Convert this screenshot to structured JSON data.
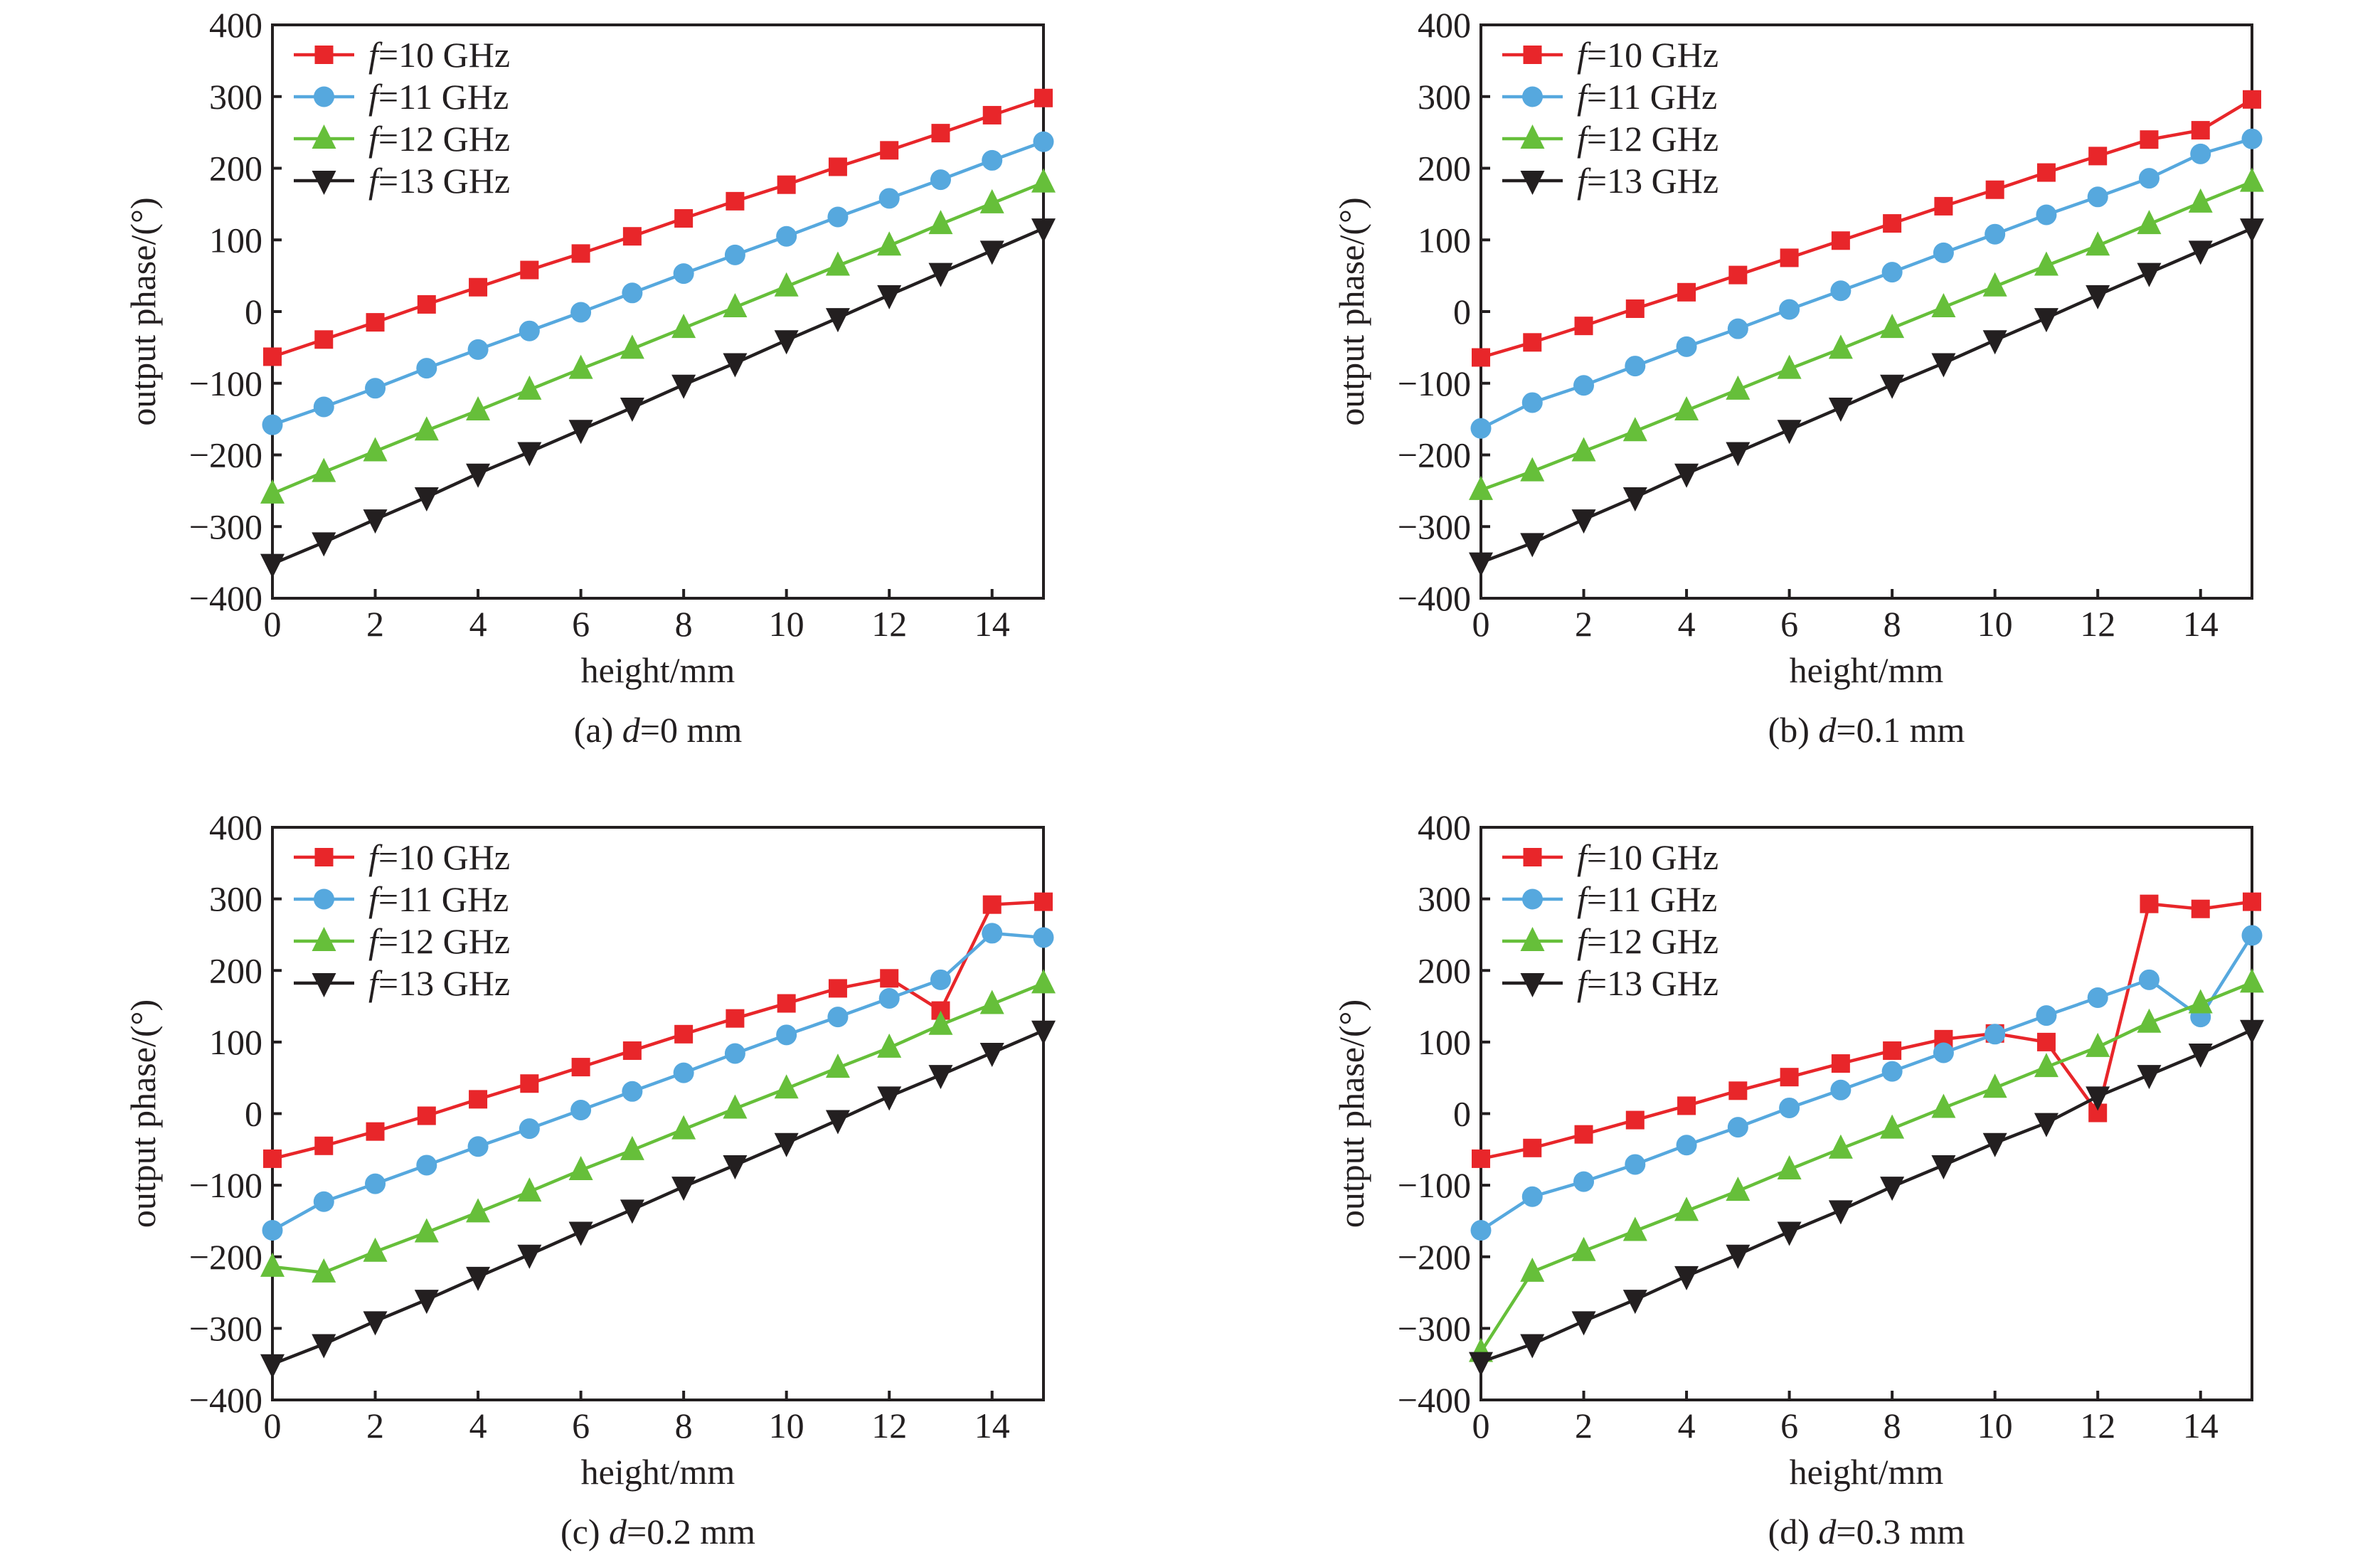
{
  "chart_data": [
    {
      "type": "line",
      "panel": "a",
      "caption_prefix": "(a) ",
      "caption_var": "d",
      "caption_suffix": "=0 mm",
      "xlabel": "height/mm",
      "ylabel": "output phase/(°)",
      "xlim": [
        0,
        15
      ],
      "ylim": [
        -400,
        400
      ],
      "xticks": [
        0,
        2,
        4,
        6,
        8,
        10,
        12,
        14
      ],
      "yticks": [
        -400,
        -300,
        -200,
        -100,
        0,
        100,
        200,
        300,
        400
      ],
      "grid": false,
      "legend_position": "top-left",
      "x": [
        0,
        1,
        2,
        3,
        4,
        5,
        6,
        7,
        8,
        9,
        10,
        11,
        12,
        13,
        14,
        15
      ],
      "series": [
        {
          "name": "f=10 GHz",
          "var": "f",
          "label": "=10 GHz",
          "color": "#e8262a",
          "marker": "square",
          "values": [
            -63,
            -39,
            -15,
            10,
            34,
            58,
            81,
            105,
            130,
            154,
            177,
            202,
            225,
            249,
            274,
            298
          ]
        },
        {
          "name": "f=11 GHz",
          "var": "f",
          "label": "=11 GHz",
          "color": "#56a8de",
          "marker": "circle",
          "values": [
            -158,
            -133,
            -107,
            -79,
            -53,
            -27,
            -1,
            26,
            53,
            79,
            105,
            132,
            158,
            184,
            211,
            237
          ]
        },
        {
          "name": "f=12 GHz",
          "var": "f",
          "label": "=12 GHz",
          "color": "#66bf3a",
          "marker": "triangle-up",
          "values": [
            -254,
            -224,
            -195,
            -166,
            -138,
            -109,
            -80,
            -52,
            -23,
            6,
            35,
            64,
            92,
            122,
            151,
            180
          ]
        },
        {
          "name": "f=13 GHz",
          "var": "f",
          "label": "=13 GHz",
          "color": "#231f20",
          "marker": "triangle-down",
          "values": [
            -352,
            -322,
            -290,
            -259,
            -226,
            -196,
            -165,
            -134,
            -102,
            -72,
            -40,
            -9,
            23,
            54,
            85,
            116
          ]
        }
      ]
    },
    {
      "type": "line",
      "panel": "b",
      "caption_prefix": "(b) ",
      "caption_var": "d",
      "caption_suffix": "=0.1 mm",
      "xlabel": "height/mm",
      "ylabel": "output phase/(°)",
      "xlim": [
        0,
        15
      ],
      "ylim": [
        -400,
        400
      ],
      "xticks": [
        0,
        2,
        4,
        6,
        8,
        10,
        12,
        14
      ],
      "yticks": [
        -400,
        -300,
        -200,
        -100,
        0,
        100,
        200,
        300,
        400
      ],
      "grid": false,
      "legend_position": "top-left",
      "x": [
        0,
        1,
        2,
        3,
        4,
        5,
        6,
        7,
        8,
        9,
        10,
        11,
        12,
        13,
        14,
        15
      ],
      "series": [
        {
          "name": "f=10 GHz",
          "var": "f",
          "label": "=10 GHz",
          "color": "#e8262a",
          "marker": "square",
          "values": [
            -64,
            -43,
            -20,
            4,
            27,
            51,
            75,
            99,
            123,
            147,
            170,
            194,
            217,
            240,
            253,
            296
          ]
        },
        {
          "name": "f=11 GHz",
          "var": "f",
          "label": "=11 GHz",
          "color": "#56a8de",
          "marker": "circle",
          "values": [
            -163,
            -127,
            -103,
            -76,
            -49,
            -24,
            3,
            29,
            55,
            82,
            108,
            135,
            160,
            186,
            220,
            241
          ]
        },
        {
          "name": "f=12 GHz",
          "var": "f",
          "label": "=12 GHz",
          "color": "#66bf3a",
          "marker": "triangle-up",
          "values": [
            -249,
            -223,
            -195,
            -167,
            -138,
            -109,
            -80,
            -52,
            -23,
            6,
            35,
            64,
            92,
            122,
            152,
            181
          ]
        },
        {
          "name": "f=13 GHz",
          "var": "f",
          "label": "=13 GHz",
          "color": "#231f20",
          "marker": "triangle-down",
          "values": [
            -350,
            -323,
            -290,
            -259,
            -226,
            -196,
            -165,
            -134,
            -102,
            -72,
            -40,
            -9,
            23,
            54,
            85,
            116
          ]
        }
      ]
    },
    {
      "type": "line",
      "panel": "c",
      "caption_prefix": "(c) ",
      "caption_var": "d",
      "caption_suffix": "=0.2 mm",
      "xlabel": "height/mm",
      "ylabel": "output phase/(°)",
      "xlim": [
        0,
        15
      ],
      "ylim": [
        -400,
        400
      ],
      "xticks": [
        0,
        2,
        4,
        6,
        8,
        10,
        12,
        14
      ],
      "yticks": [
        -400,
        -300,
        -200,
        -100,
        0,
        100,
        200,
        300,
        400
      ],
      "grid": false,
      "legend_position": "top-left",
      "x": [
        0,
        1,
        2,
        3,
        4,
        5,
        6,
        7,
        8,
        9,
        10,
        11,
        12,
        13,
        14,
        15
      ],
      "series": [
        {
          "name": "f=10 GHz",
          "var": "f",
          "label": "=10 GHz",
          "color": "#e8262a",
          "marker": "square",
          "values": [
            -63,
            -45,
            -25,
            -3,
            20,
            42,
            65,
            88,
            111,
            133,
            154,
            175,
            189,
            144,
            292,
            296
          ]
        },
        {
          "name": "f=11 GHz",
          "var": "f",
          "label": "=11 GHz",
          "color": "#56a8de",
          "marker": "circle",
          "values": [
            -163,
            -123,
            -98,
            -72,
            -46,
            -21,
            5,
            31,
            57,
            84,
            110,
            135,
            161,
            187,
            252,
            246
          ]
        },
        {
          "name": "f=12 GHz",
          "var": "f",
          "label": "=12 GHz",
          "color": "#66bf3a",
          "marker": "triangle-up",
          "values": [
            -214,
            -222,
            -193,
            -166,
            -138,
            -109,
            -79,
            -51,
            -22,
            7,
            35,
            64,
            92,
            124,
            153,
            182
          ]
        },
        {
          "name": "f=13 GHz",
          "var": "f",
          "label": "=13 GHz",
          "color": "#231f20",
          "marker": "triangle-down",
          "values": [
            -350,
            -322,
            -290,
            -260,
            -228,
            -197,
            -165,
            -134,
            -102,
            -72,
            -41,
            -9,
            24,
            54,
            85,
            116
          ]
        }
      ]
    },
    {
      "type": "line",
      "panel": "d",
      "caption_prefix": "(d) ",
      "caption_var": "d",
      "caption_suffix": "=0.3 mm",
      "xlabel": "height/mm",
      "ylabel": "output phase/(°)",
      "xlim": [
        0,
        15
      ],
      "ylim": [
        -400,
        400
      ],
      "xticks": [
        0,
        2,
        4,
        6,
        8,
        10,
        12,
        14
      ],
      "yticks": [
        -400,
        -300,
        -200,
        -100,
        0,
        100,
        200,
        300,
        400
      ],
      "grid": false,
      "legend_position": "top-left",
      "x": [
        0,
        1,
        2,
        3,
        4,
        5,
        6,
        7,
        8,
        9,
        10,
        11,
        12,
        13,
        14,
        15
      ],
      "series": [
        {
          "name": "f=10 GHz",
          "var": "f",
          "label": "=10 GHz",
          "color": "#e8262a",
          "marker": "square",
          "values": [
            -63,
            -48,
            -29,
            -9,
            11,
            32,
            51,
            70,
            88,
            104,
            112,
            100,
            1,
            293,
            286,
            296
          ]
        },
        {
          "name": "f=11 GHz",
          "var": "f",
          "label": "=11 GHz",
          "color": "#56a8de",
          "marker": "circle",
          "values": [
            -163,
            -116,
            -95,
            -71,
            -44,
            -19,
            8,
            33,
            59,
            85,
            111,
            137,
            162,
            187,
            135,
            249
          ]
        },
        {
          "name": "f=12 GHz",
          "var": "f",
          "label": "=12 GHz",
          "color": "#66bf3a",
          "marker": "triangle-up",
          "values": [
            -333,
            -221,
            -192,
            -164,
            -136,
            -108,
            -78,
            -49,
            -21,
            8,
            36,
            65,
            93,
            127,
            154,
            183
          ]
        },
        {
          "name": "f=13 GHz",
          "var": "f",
          "label": "=13 GHz",
          "color": "#231f20",
          "marker": "triangle-down",
          "values": [
            -347,
            -322,
            -290,
            -260,
            -227,
            -197,
            -165,
            -135,
            -102,
            -72,
            -41,
            -13,
            24,
            54,
            84,
            117
          ]
        }
      ]
    }
  ]
}
